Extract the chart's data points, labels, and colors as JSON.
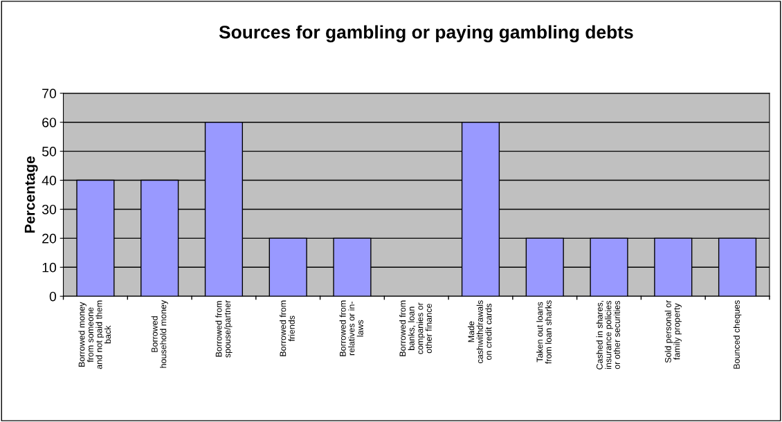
{
  "chart_data": {
    "type": "bar",
    "title": "Sources for gambling or paying gambling debts",
    "ylabel": "Percentage",
    "categories": [
      "Borrowed money\nfrom someone\nand not paid them\nback",
      "Borrowed\nhousehold money",
      "Borrowed from\nspouse/partner",
      "Borrowed from\nfriends",
      "Borrowed from\nrelatives or in-\nlaws",
      "Borrowed from\nbanks, loan\ncompanies or\nother finance",
      "Made\ncashwithdrawals\non credit cards",
      "Taken out loans\nfrom loan sharks",
      "Cashed in shares,\ninsurance policies\nor other securities",
      "Sold personal or\nfamily property",
      "Bounced cheques"
    ],
    "values": [
      40,
      40,
      60,
      20,
      20,
      0,
      60,
      20,
      20,
      20,
      20
    ],
    "color": "#9999ff",
    "ylim": [
      0,
      70
    ],
    "yticks": [
      0,
      10,
      20,
      30,
      40,
      50,
      60,
      70
    ],
    "grid": "y",
    "legend": false
  }
}
